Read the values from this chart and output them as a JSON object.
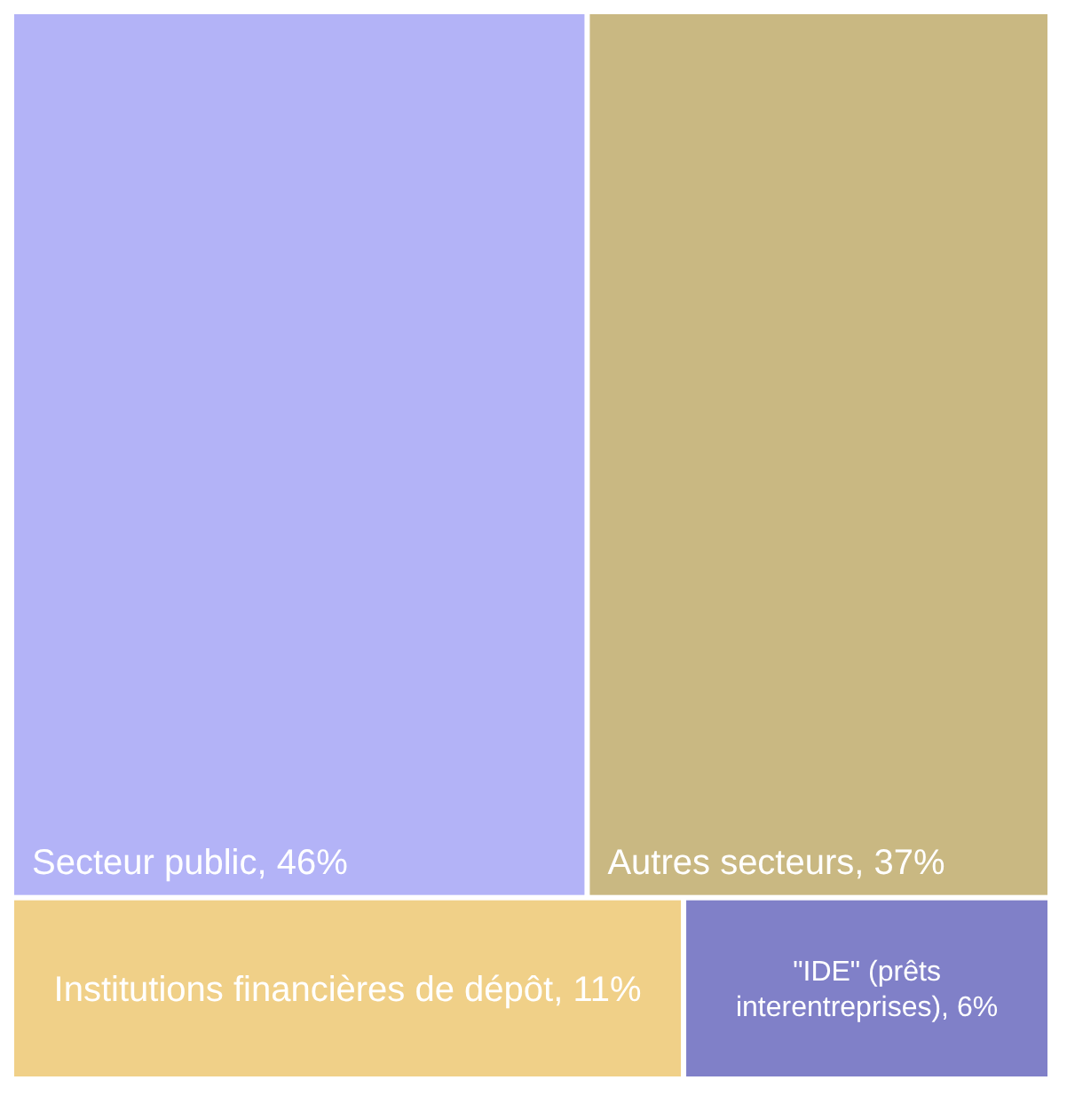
{
  "chart_data": {
    "type": "other",
    "categories": [
      "Secteur public",
      "Autres secteurs",
      "Institutions financières de dépôt",
      "\"IDE\" (prêts interentreprises)"
    ],
    "values": [
      46,
      37,
      11,
      6
    ],
    "value_labels": [
      ", 46%",
      ", 37%",
      ", 11%",
      ", 6%"
    ],
    "colors": [
      "#b3b3f7",
      "#c9b882",
      "#f0d088",
      "#8080c8"
    ]
  }
}
